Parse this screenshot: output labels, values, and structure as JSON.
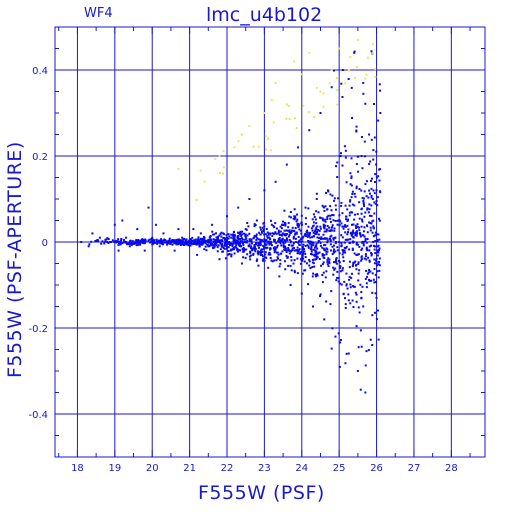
{
  "header": {
    "tag": "WF4",
    "title": "lmc_u4b102"
  },
  "chart_data": {
    "type": "scatter",
    "title": "lmc_u4b102",
    "xlabel": "F555W (PSF)",
    "ylabel": "F555W (PSF-APERTURE)",
    "xlim": [
      17.4,
      28.9
    ],
    "ylim": [
      -0.5,
      0.5
    ],
    "x_ticks": [
      18,
      19,
      20,
      21,
      22,
      23,
      24,
      25,
      26,
      27,
      28
    ],
    "y_ticks": [
      -0.4,
      -0.2,
      0,
      0.2,
      0.4
    ],
    "x_tick_labels": [
      "18",
      "19",
      "20",
      "21",
      "22",
      "23",
      "24",
      "25",
      "26",
      "27",
      "28"
    ],
    "y_tick_labels": [
      "-0.4",
      "-0.2",
      "0",
      "0.2",
      "0.4"
    ],
    "grid": true,
    "colors": {
      "axes": "#1a1acc",
      "primary_points": "#0a0aee",
      "secondary_points": "#e8e850"
    },
    "series": [
      {
        "color": "#0a0aee",
        "points": [
          [
            18.1,
            0.0
          ],
          [
            18.3,
            -0.01
          ],
          [
            18.4,
            0.02
          ],
          [
            18.6,
            0.01
          ],
          [
            18.9,
            0.0
          ],
          [
            19.0,
            0.04
          ],
          [
            19.1,
            -0.02
          ],
          [
            19.2,
            0.05
          ],
          [
            19.3,
            0.01
          ],
          [
            19.4,
            -0.01
          ],
          [
            19.6,
            0.03
          ],
          [
            19.7,
            0.0
          ],
          [
            19.8,
            -0.02
          ],
          [
            19.9,
            0.08
          ],
          [
            20.0,
            0.01
          ],
          [
            20.1,
            0.04
          ],
          [
            20.2,
            -0.01
          ],
          [
            20.3,
            0.02
          ],
          [
            20.5,
            0.0
          ],
          [
            20.6,
            -0.02
          ],
          [
            20.7,
            0.03
          ],
          [
            20.8,
            0.01
          ],
          [
            21.0,
            0.0
          ],
          [
            21.1,
            0.03
          ],
          [
            21.2,
            -0.03
          ],
          [
            21.3,
            0.02
          ],
          [
            21.4,
            0.01
          ],
          [
            21.5,
            -0.01
          ],
          [
            21.6,
            0.04
          ],
          [
            21.7,
            0.0
          ],
          [
            21.8,
            -0.04
          ],
          [
            21.9,
            0.02
          ],
          [
            22.0,
            0.06
          ],
          [
            22.1,
            -0.02
          ],
          [
            22.2,
            0.01
          ],
          [
            22.3,
            0.08
          ],
          [
            22.4,
            -0.05
          ],
          [
            22.5,
            0.03
          ],
          [
            22.6,
            0.1
          ],
          [
            22.7,
            -0.03
          ],
          [
            22.8,
            0.05
          ],
          [
            22.9,
            0.0
          ],
          [
            23.0,
            0.12
          ],
          [
            23.1,
            -0.06
          ],
          [
            23.2,
            0.04
          ],
          [
            23.3,
            0.14
          ],
          [
            23.4,
            -0.08
          ],
          [
            23.5,
            0.02
          ],
          [
            23.6,
            0.18
          ],
          [
            23.7,
            -0.1
          ],
          [
            23.8,
            0.06
          ],
          [
            23.9,
            0.22
          ],
          [
            24.0,
            -0.12
          ],
          [
            24.1,
            0.08
          ],
          [
            24.2,
            0.26
          ],
          [
            24.3,
            -0.15
          ],
          [
            24.4,
            0.1
          ],
          [
            24.5,
            0.3
          ],
          [
            24.6,
            -0.18
          ],
          [
            24.7,
            0.12
          ],
          [
            24.8,
            0.36
          ],
          [
            24.9,
            -0.22
          ],
          [
            25.0,
            0.05
          ],
          [
            25.1,
            0.4
          ],
          [
            25.2,
            -0.26
          ],
          [
            25.3,
            0.16
          ],
          [
            25.4,
            0.44
          ],
          [
            25.5,
            -0.3
          ],
          [
            25.6,
            0.2
          ],
          [
            25.7,
            -0.35
          ],
          [
            25.8,
            0.25
          ],
          [
            25.9,
            0.1
          ],
          [
            26.0,
            -0.05
          ],
          [
            26.1,
            0.3
          ]
        ]
      },
      {
        "color": "#e8e850",
        "points": [
          [
            20.7,
            0.17
          ],
          [
            21.4,
            0.14
          ],
          [
            21.8,
            0.2
          ],
          [
            22.2,
            0.22
          ],
          [
            22.4,
            0.25
          ],
          [
            22.6,
            0.27
          ],
          [
            23.0,
            0.3
          ],
          [
            23.2,
            0.33
          ],
          [
            23.3,
            0.37
          ],
          [
            23.6,
            0.32
          ],
          [
            23.8,
            0.42
          ],
          [
            24.0,
            0.39
          ],
          [
            24.2,
            0.44
          ],
          [
            24.5,
            0.35
          ],
          [
            24.8,
            0.4
          ],
          [
            25.0,
            0.45
          ],
          [
            25.3,
            0.43
          ],
          [
            25.5,
            0.47
          ],
          [
            25.7,
            0.38
          ],
          [
            25.9,
            0.46
          ]
        ]
      }
    ]
  }
}
